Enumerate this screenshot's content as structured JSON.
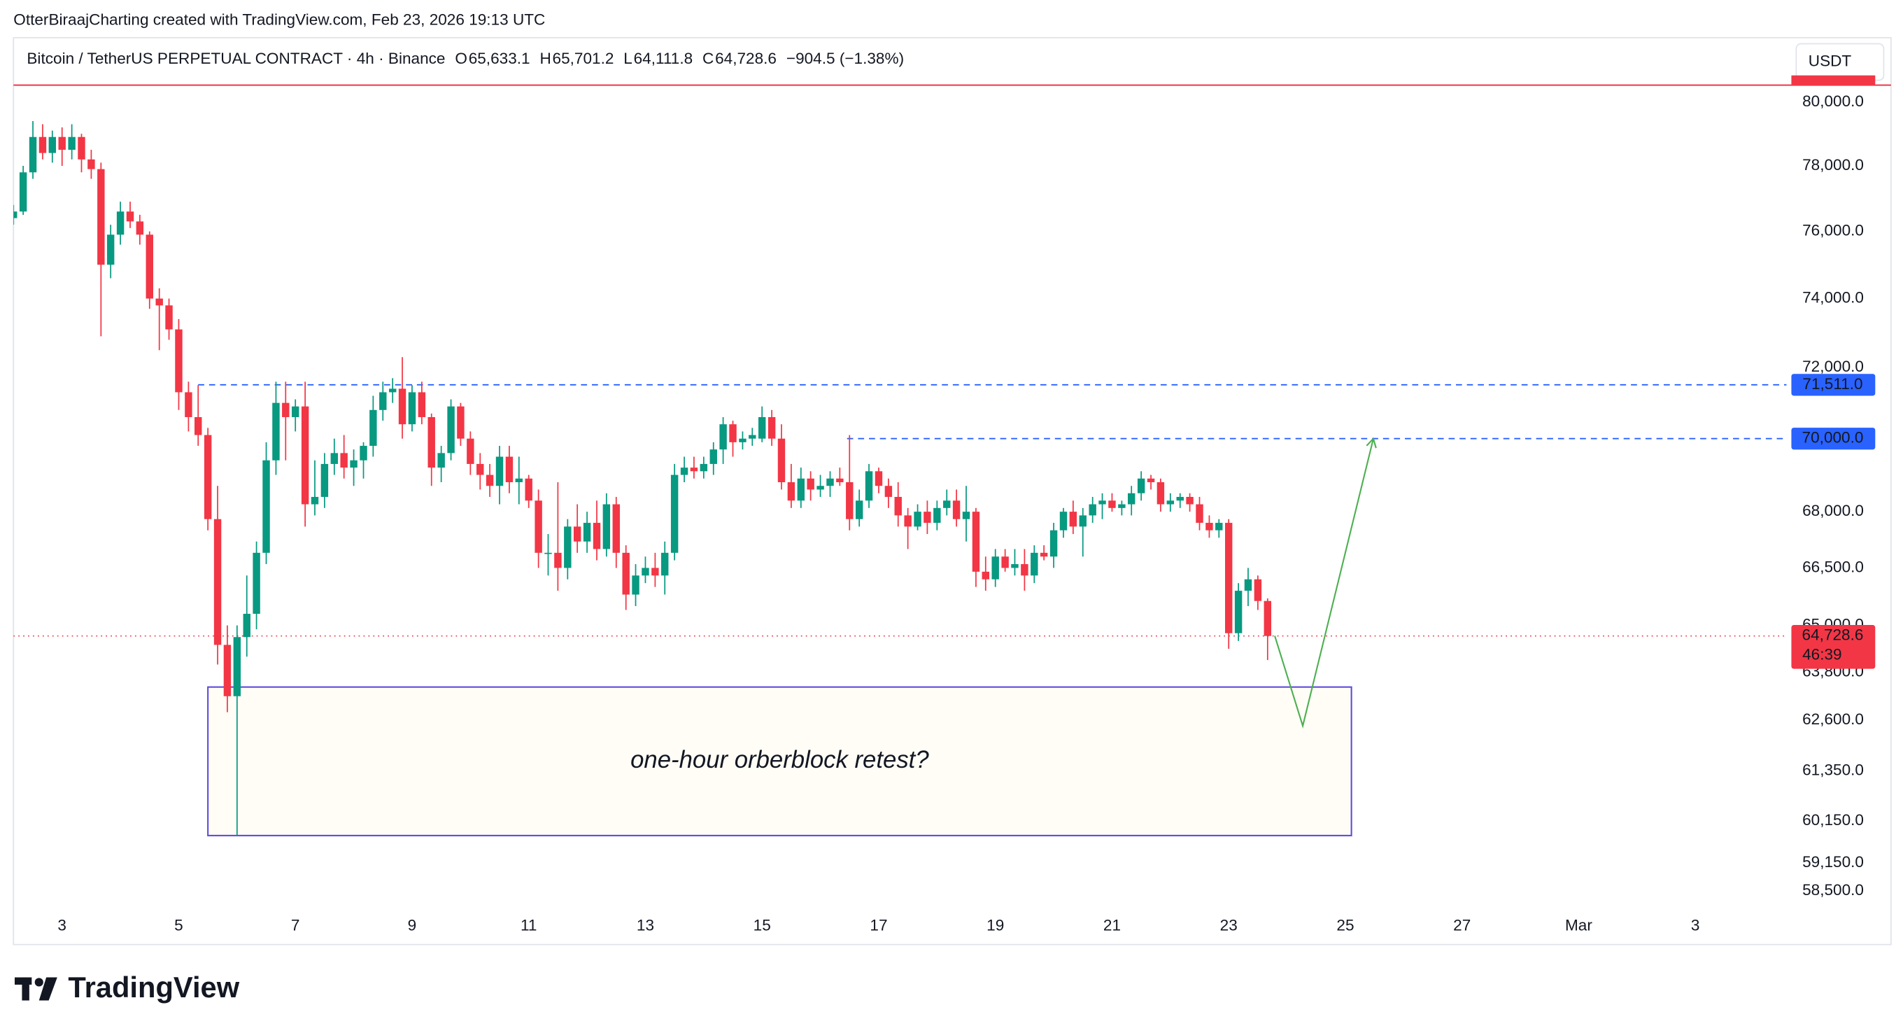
{
  "attribution": "OtterBiraajCharting created with TradingView.com, Feb 23, 2026 19:13 UTC",
  "currency_button": "USDT",
  "brand": "TradingView",
  "chart_data": {
    "type": "candlestick",
    "title": "Bitcoin / TetherUS PERPETUAL CONTRACT · 4h · Binance",
    "legend": [
      {
        "label": "O",
        "value": "65,633.1"
      },
      {
        "label": "H",
        "value": "65,701.2"
      },
      {
        "label": "L",
        "value": "64,111.8"
      },
      {
        "label": "C",
        "value": "64,728.6"
      }
    ],
    "change": "−904.5 (−1.38%)",
    "up_color": "#089981",
    "down_color": "#f23645",
    "log_scale": true,
    "xlim": [
      2.167,
      32.563
    ],
    "ylim": [
      58160,
      82070
    ],
    "xticks": [
      3,
      5,
      7,
      9,
      11,
      13,
      15,
      17,
      19,
      21,
      23,
      25,
      27,
      {
        "value": 29,
        "label": "Mar"
      },
      {
        "value": 31,
        "label": "3"
      }
    ],
    "yticks": [
      {
        "value": 80000,
        "label": "80,000.0"
      },
      {
        "value": 78000,
        "label": "78,000.0"
      },
      {
        "value": 76000,
        "label": "76,000.0"
      },
      {
        "value": 74000,
        "label": "74,000.0"
      },
      {
        "value": 72000,
        "label": "72,000.0"
      },
      {
        "value": 68000,
        "label": "68,000.0"
      },
      {
        "value": 66500,
        "label": "66,500.0"
      },
      {
        "value": 65000,
        "label": "65,000.0"
      },
      {
        "value": 63800,
        "label": "63,800.0"
      },
      {
        "value": 62600,
        "label": "62,600.0"
      },
      {
        "value": 61350,
        "label": "61,350.0"
      },
      {
        "value": 60150,
        "label": "60,150.0"
      },
      {
        "value": 59150,
        "label": "59,150.0"
      },
      {
        "value": 58500,
        "label": "58,500.0"
      }
    ],
    "x": [
      2.167,
      2.333,
      2.5,
      2.667,
      2.833,
      3,
      3.167,
      3.333,
      3.5,
      3.667,
      3.833,
      4,
      4.167,
      4.333,
      4.5,
      4.667,
      4.833,
      5,
      5.167,
      5.333,
      5.5,
      5.667,
      5.833,
      6,
      6.167,
      6.333,
      6.5,
      6.667,
      6.833,
      7,
      7.167,
      7.333,
      7.5,
      7.667,
      7.833,
      8,
      8.167,
      8.333,
      8.5,
      8.667,
      8.833,
      9,
      9.167,
      9.333,
      9.5,
      9.667,
      9.833,
      10,
      10.167,
      10.333,
      10.5,
      10.667,
      10.833,
      11,
      11.167,
      11.333,
      11.5,
      11.667,
      11.833,
      12,
      12.167,
      12.333,
      12.5,
      12.667,
      12.833,
      13,
      13.167,
      13.333,
      13.5,
      13.667,
      13.833,
      14,
      14.167,
      14.333,
      14.5,
      14.667,
      14.833,
      15,
      15.167,
      15.333,
      15.5,
      15.667,
      15.833,
      16,
      16.167,
      16.333,
      16.5,
      16.667,
      16.833,
      17,
      17.167,
      17.333,
      17.5,
      17.667,
      17.833,
      18,
      18.167,
      18.333,
      18.5,
      18.667,
      18.833,
      19,
      19.167,
      19.333,
      19.5,
      19.667,
      19.833,
      20,
      20.167,
      20.333,
      20.5,
      20.667,
      20.833,
      21,
      21.167,
      21.333,
      21.5,
      21.667,
      21.833,
      22,
      22.167,
      22.333,
      22.5,
      22.667,
      22.833,
      23,
      23.167,
      23.333,
      23.5,
      23.667
    ],
    "ohlc": [
      [
        76400,
        76800,
        76200,
        76600
      ],
      [
        76600,
        78000,
        76500,
        77800
      ],
      [
        77800,
        79400,
        77600,
        78900
      ],
      [
        78900,
        79300,
        78200,
        78400
      ],
      [
        78400,
        79100,
        78100,
        78900
      ],
      [
        78900,
        79200,
        78000,
        78500
      ],
      [
        78500,
        79300,
        78200,
        78900
      ],
      [
        78900,
        79000,
        77800,
        78200
      ],
      [
        78200,
        78500,
        77600,
        77900
      ],
      [
        77900,
        78100,
        72900,
        75000
      ],
      [
        75000,
        76200,
        74600,
        75900
      ],
      [
        75900,
        76900,
        75600,
        76600
      ],
      [
        76600,
        76900,
        76100,
        76300
      ],
      [
        76300,
        76500,
        75600,
        75900
      ],
      [
        75900,
        76000,
        73700,
        74000
      ],
      [
        74000,
        74300,
        72500,
        73800
      ],
      [
        73800,
        74000,
        72800,
        73100
      ],
      [
        73100,
        73400,
        70800,
        71300
      ],
      [
        71300,
        71600,
        70200,
        70600
      ],
      [
        70600,
        71500,
        69800,
        70100
      ],
      [
        70100,
        70300,
        67500,
        67800
      ],
      [
        67800,
        68700,
        64000,
        64500
      ],
      [
        64500,
        65000,
        62800,
        63200
      ],
      [
        63200,
        65000,
        59800,
        64700
      ],
      [
        64700,
        66300,
        64200,
        65300
      ],
      [
        65300,
        67200,
        64900,
        66900
      ],
      [
        66900,
        69900,
        66600,
        69400
      ],
      [
        69400,
        71600,
        69000,
        71000
      ],
      [
        71000,
        71600,
        69400,
        70600
      ],
      [
        70600,
        71100,
        70200,
        70900
      ],
      [
        70900,
        71600,
        67600,
        68200
      ],
      [
        68200,
        69400,
        67900,
        68400
      ],
      [
        68400,
        69600,
        68100,
        69300
      ],
      [
        69300,
        70000,
        69000,
        69600
      ],
      [
        69600,
        70100,
        68900,
        69200
      ],
      [
        69200,
        69700,
        68700,
        69400
      ],
      [
        69400,
        69900,
        68900,
        69800
      ],
      [
        69800,
        71200,
        69500,
        70800
      ],
      [
        70800,
        71600,
        70500,
        71300
      ],
      [
        71300,
        71700,
        71000,
        71400
      ],
      [
        71400,
        72300,
        70000,
        70400
      ],
      [
        70400,
        71500,
        70200,
        71300
      ],
      [
        71300,
        71600,
        70400,
        70600
      ],
      [
        70600,
        70700,
        68700,
        69200
      ],
      [
        69200,
        69800,
        68800,
        69600
      ],
      [
        69600,
        71100,
        69400,
        70900
      ],
      [
        70900,
        71000,
        69800,
        70000
      ],
      [
        70000,
        70200,
        69000,
        69300
      ],
      [
        69300,
        69600,
        68600,
        69000
      ],
      [
        69000,
        69300,
        68400,
        68700
      ],
      [
        68700,
        69800,
        68200,
        69500
      ],
      [
        69500,
        69800,
        68500,
        68800
      ],
      [
        68800,
        69500,
        68200,
        68900
      ],
      [
        68900,
        69000,
        68100,
        68300
      ],
      [
        68300,
        68600,
        66500,
        66900
      ],
      [
        66900,
        67400,
        66300,
        66900
      ],
      [
        66900,
        68800,
        65900,
        66500
      ],
      [
        66500,
        67800,
        66200,
        67600
      ],
      [
        67600,
        68200,
        66900,
        67200
      ],
      [
        67200,
        68000,
        66900,
        67700
      ],
      [
        67700,
        68300,
        66700,
        67000
      ],
      [
        67000,
        68500,
        66800,
        68200
      ],
      [
        68200,
        68400,
        66500,
        66900
      ],
      [
        66900,
        67100,
        65400,
        65800
      ],
      [
        65800,
        66600,
        65500,
        66300
      ],
      [
        66300,
        66800,
        66100,
        66500
      ],
      [
        66500,
        66900,
        66000,
        66300
      ],
      [
        66300,
        67200,
        65800,
        66900
      ],
      [
        66900,
        69300,
        66700,
        69000
      ],
      [
        69000,
        69500,
        68800,
        69200
      ],
      [
        69200,
        69500,
        68900,
        69100
      ],
      [
        69100,
        69500,
        68900,
        69300
      ],
      [
        69300,
        69900,
        69000,
        69700
      ],
      [
        69700,
        70600,
        69300,
        70400
      ],
      [
        70400,
        70500,
        69500,
        69900
      ],
      [
        69900,
        70200,
        69700,
        70000
      ],
      [
        70000,
        70300,
        69800,
        70100
      ],
      [
        70000,
        70900,
        69900,
        70600
      ],
      [
        70600,
        70800,
        69800,
        70000
      ],
      [
        70000,
        70400,
        68600,
        68800
      ],
      [
        68800,
        69300,
        68100,
        68300
      ],
      [
        68300,
        69200,
        68100,
        68900
      ],
      [
        68900,
        69100,
        68300,
        68600
      ],
      [
        68600,
        69000,
        68400,
        68700
      ],
      [
        68700,
        69100,
        68400,
        68900
      ],
      [
        68900,
        69200,
        68700,
        68800
      ],
      [
        68800,
        70100,
        67500,
        67800
      ],
      [
        67800,
        68600,
        67600,
        68300
      ],
      [
        68300,
        69300,
        68100,
        69100
      ],
      [
        69100,
        69200,
        68500,
        68700
      ],
      [
        68700,
        68900,
        68100,
        68400
      ],
      [
        68400,
        68800,
        67600,
        67900
      ],
      [
        67900,
        68100,
        67000,
        67600
      ],
      [
        67600,
        68200,
        67500,
        68000
      ],
      [
        68000,
        68300,
        67400,
        67700
      ],
      [
        67700,
        68300,
        67500,
        68100
      ],
      [
        68100,
        68600,
        67900,
        68300
      ],
      [
        68300,
        68600,
        67600,
        67800
      ],
      [
        67800,
        68700,
        67200,
        68000
      ],
      [
        68000,
        68100,
        66000,
        66400
      ],
      [
        66400,
        66800,
        65900,
        66200
      ],
      [
        66200,
        67000,
        66000,
        66800
      ],
      [
        66800,
        67000,
        66400,
        66500
      ],
      [
        66500,
        67000,
        66300,
        66600
      ],
      [
        66600,
        67000,
        65900,
        66300
      ],
      [
        66300,
        67100,
        66100,
        66900
      ],
      [
        66900,
        67100,
        66700,
        66800
      ],
      [
        66800,
        67700,
        66500,
        67500
      ],
      [
        67500,
        68100,
        67300,
        68000
      ],
      [
        68000,
        68300,
        67400,
        67600
      ],
      [
        67600,
        68100,
        66800,
        67900
      ],
      [
        67900,
        68400,
        67700,
        68200
      ],
      [
        68200,
        68500,
        67800,
        68300
      ],
      [
        68300,
        68500,
        68000,
        68100
      ],
      [
        68100,
        68300,
        67900,
        68200
      ],
      [
        68200,
        68700,
        67900,
        68500
      ],
      [
        68500,
        69100,
        68300,
        68900
      ],
      [
        68900,
        69000,
        68600,
        68800
      ],
      [
        68800,
        68900,
        68000,
        68200
      ],
      [
        68200,
        68500,
        68000,
        68300
      ],
      [
        68300,
        68500,
        68100,
        68400
      ],
      [
        68400,
        68500,
        68000,
        68200
      ],
      [
        68200,
        68400,
        67500,
        67700
      ],
      [
        67700,
        67900,
        67300,
        67500
      ],
      [
        67500,
        67800,
        67300,
        67700
      ],
      [
        67700,
        67800,
        64400,
        64800
      ],
      [
        64800,
        66100,
        64600,
        65900
      ],
      [
        65900,
        66500,
        65500,
        66200
      ],
      [
        66200,
        66300,
        65400,
        65633.1
      ],
      [
        65633.1,
        65701.2,
        64111.8,
        64728.6
      ]
    ],
    "alert_line": {
      "value": 80540,
      "color": "#f23645"
    },
    "hlines": [
      {
        "value": 71511,
        "label": "71,511.0",
        "x0": 5.333,
        "color": "#2962ff"
      },
      {
        "value": 70000,
        "label": "70,000.0",
        "x0": 16.458,
        "color": "#2962ff"
      }
    ],
    "last_price": {
      "value": 64728.6,
      "label": "64,728.6",
      "countdown": "46:39",
      "color": "#f23645"
    },
    "box": {
      "x": [
        5.5,
        25.104
      ],
      "y": [
        59800,
        63430
      ],
      "label": "one-hour orberblock retest?",
      "color": "#5b4bdc",
      "label_color": "#43a047"
    },
    "arrow": {
      "x": [
        23.79,
        24.27,
        25.48
      ],
      "y": [
        64730,
        62460,
        70000
      ],
      "color": "#4caf50"
    }
  }
}
